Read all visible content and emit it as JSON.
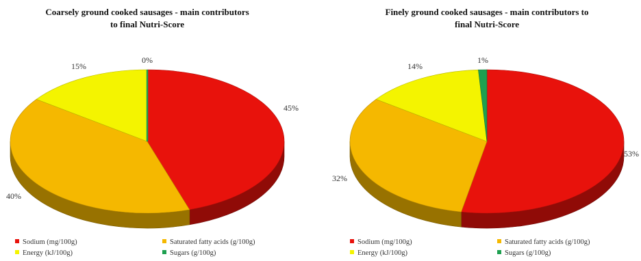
{
  "chart_data": [
    {
      "type": "pie",
      "title": "Coarsely ground cooked sausages - main contributors to final Nutri-Score",
      "title_lines": [
        "Coarsely ground cooked sausages - main contributors",
        "to final Nutri-Score"
      ],
      "labels": [
        "Sodium (mg/100g)",
        "Saturated fatty acids (g/100g)",
        "Energy (kJ/100g)",
        "Sugars (g/100g)"
      ],
      "values": [
        45,
        40,
        15,
        0
      ],
      "data_labels": [
        "45%",
        "40%",
        "15%",
        "0%"
      ],
      "colors": [
        "#e8120c",
        "#f5b800",
        "#f4f400",
        "#1ea050"
      ],
      "legend_position": "bottom"
    },
    {
      "type": "pie",
      "title": "Finely ground cooked sausages - main contributors to final Nutri-Score",
      "title_lines": [
        "Finely ground cooked sausages - main contributors to",
        "final Nutri-Score"
      ],
      "labels": [
        "Sodium (mg/100g)",
        "Saturated fatty acids (g/100g)",
        "Energy (kJ/100g)",
        "Sugars (g/100g)"
      ],
      "values": [
        53,
        32,
        14,
        1
      ],
      "data_labels": [
        "53%",
        "32%",
        "14%",
        "1%"
      ],
      "colors": [
        "#e8120c",
        "#f5b800",
        "#f4f400",
        "#1ea050"
      ],
      "legend_position": "bottom"
    }
  ]
}
